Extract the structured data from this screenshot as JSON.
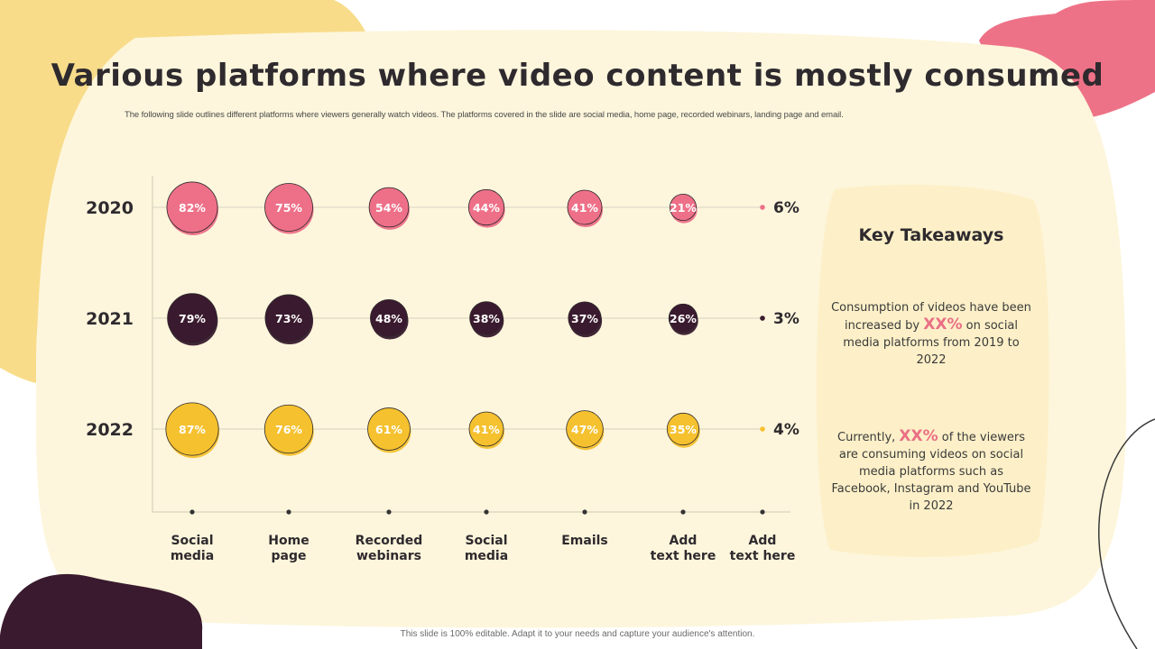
{
  "title": "Various platforms where video content is mostly consumed",
  "subtitle": "The following slide outlines different platforms where viewers generally watch videos. The platforms covered in the slide are social media, home page, recorded webinars, landing page and email.",
  "footer": "This slide is 100% editable. Adapt it to your needs and capture your audience's attention.",
  "colors": {
    "pink": "#ee7088",
    "dark": "#3a1a2e",
    "yellow": "#f5c12e",
    "cream": "#fdf6dc",
    "panel": "#fdf0c8",
    "blob_yellow": "#f8dc8a",
    "blob_pink": "#ee7287"
  },
  "takeaways": {
    "heading": "Key Takeaways",
    "item1": {
      "before": "Consumption  of videos have been increased by ",
      "highlight": "XX%",
      "after": " on social media platforms  from 2019 to 2022"
    },
    "item2": {
      "before": "Currently, ",
      "highlight": "XX%",
      "after": " of the viewers are consuming videos on social media platforms such as Facebook, Instagram and YouTube in 2022"
    }
  },
  "chart_data": {
    "type": "bubble",
    "title": "",
    "xlabel": "",
    "ylabel": "",
    "categories": [
      "Social\nmedia",
      "Home\npage",
      "Recorded\nwebinars",
      "Social\nmedia",
      "Emails",
      "Add\ntext here",
      "Add\ntext here"
    ],
    "series": [
      {
        "name": "2020",
        "color": "#ee7088",
        "values": [
          82,
          75,
          54,
          44,
          41,
          21,
          6
        ]
      },
      {
        "name": "2021",
        "color": "#3a1a2e",
        "values": [
          79,
          73,
          48,
          38,
          37,
          26,
          3
        ]
      },
      {
        "name": "2022",
        "color": "#f5c12e",
        "values": [
          87,
          76,
          61,
          41,
          47,
          35,
          4
        ]
      }
    ],
    "value_suffix": "%",
    "grid": false,
    "legend": "none"
  }
}
